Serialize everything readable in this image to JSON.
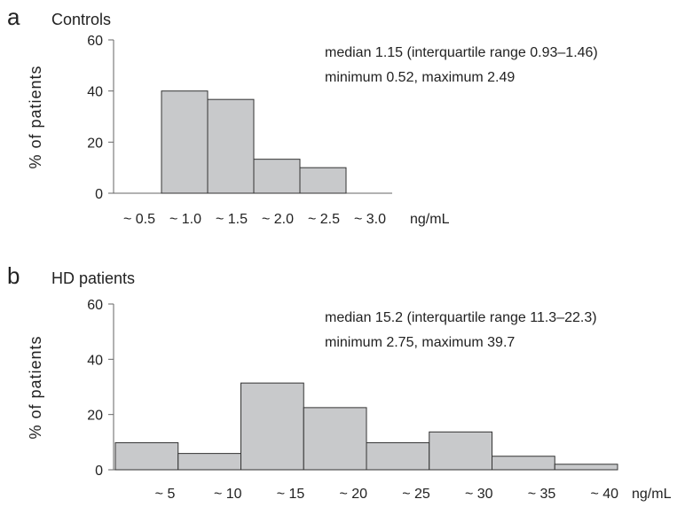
{
  "chart_data": [
    {
      "type": "bar",
      "panel_letter": "a",
      "title": "Controls",
      "ylabel": "% of patients",
      "xunit": "ng/mL",
      "ylim": [
        0,
        60
      ],
      "yticks": [
        "0",
        "20",
        "40",
        "60"
      ],
      "categories": [
        "~ 0.5",
        "~ 1.0",
        "~ 1.5",
        "~ 2.0",
        "~ 2.5",
        "~ 3.0"
      ],
      "values": [
        0,
        40,
        36.7,
        13.3,
        10,
        0
      ],
      "annotations": [
        "median 1.15 (interquartile range 0.93–1.46)",
        "minimum 0.52, maximum 2.49"
      ],
      "grid": false
    },
    {
      "type": "bar",
      "panel_letter": "b",
      "title": "HD patients",
      "ylabel": "% of patients",
      "xunit": "ng/mL",
      "ylim": [
        0,
        60
      ],
      "yticks": [
        "0",
        "20",
        "40",
        "60"
      ],
      "categories": [
        "~ 5",
        "~ 10",
        "~ 15",
        "~ 20",
        "~ 25",
        "~ 30",
        "~ 35",
        "~ 40"
      ],
      "values": [
        9.8,
        5.9,
        31.4,
        22.5,
        9.8,
        13.7,
        4.9,
        2
      ],
      "annotations": [
        "median 15.2 (interquartile range 11.3–22.3)",
        "minimum 2.75, maximum 39.7"
      ],
      "grid": false
    }
  ]
}
